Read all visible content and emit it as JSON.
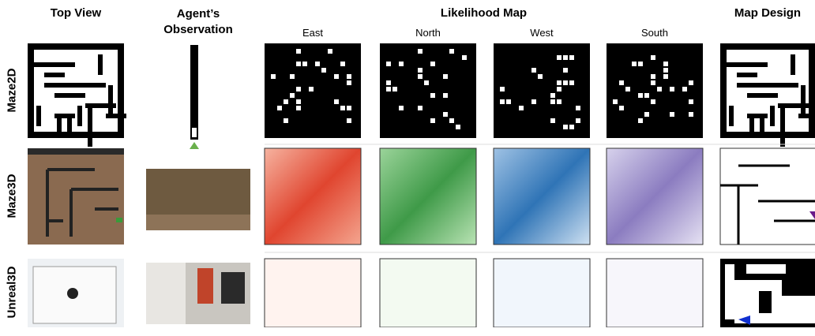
{
  "headers": {
    "top_view": "Top View",
    "observation": "Agent’s Observation",
    "likelihood": "Likelihood Map",
    "directions": [
      "East",
      "North",
      "West",
      "South"
    ],
    "map_design": "Map Design"
  },
  "rows": [
    "Maze2D",
    "Maze3D",
    "Unreal3D"
  ]
}
